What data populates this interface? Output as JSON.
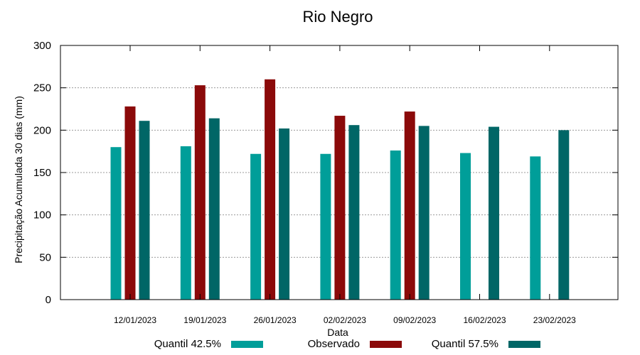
{
  "chart_data": {
    "type": "bar",
    "title": "Rio Negro",
    "xlabel": "Data",
    "ylabel": "Precipitação Acumulada 30 dias (mm)",
    "ylim": [
      0,
      300
    ],
    "yticks": [
      0,
      50,
      100,
      150,
      200,
      250,
      300
    ],
    "grid": true,
    "legend_position": "bottom",
    "categories": [
      "12/01/2023",
      "19/01/2023",
      "26/01/2023",
      "02/02/2023",
      "09/02/2023",
      "16/02/2023",
      "23/02/2023"
    ],
    "series": [
      {
        "name": "Quantil 42.5%",
        "color": "#009e99",
        "values": [
          180,
          181,
          172,
          172,
          176,
          173,
          169
        ]
      },
      {
        "name": "Observado",
        "color": "#8b0a0a",
        "values": [
          228,
          253,
          260,
          217,
          222,
          null,
          null
        ]
      },
      {
        "name": "Quantil 57.5%",
        "color": "#006666",
        "values": [
          211,
          214,
          202,
          206,
          205,
          204,
          200
        ]
      }
    ]
  }
}
